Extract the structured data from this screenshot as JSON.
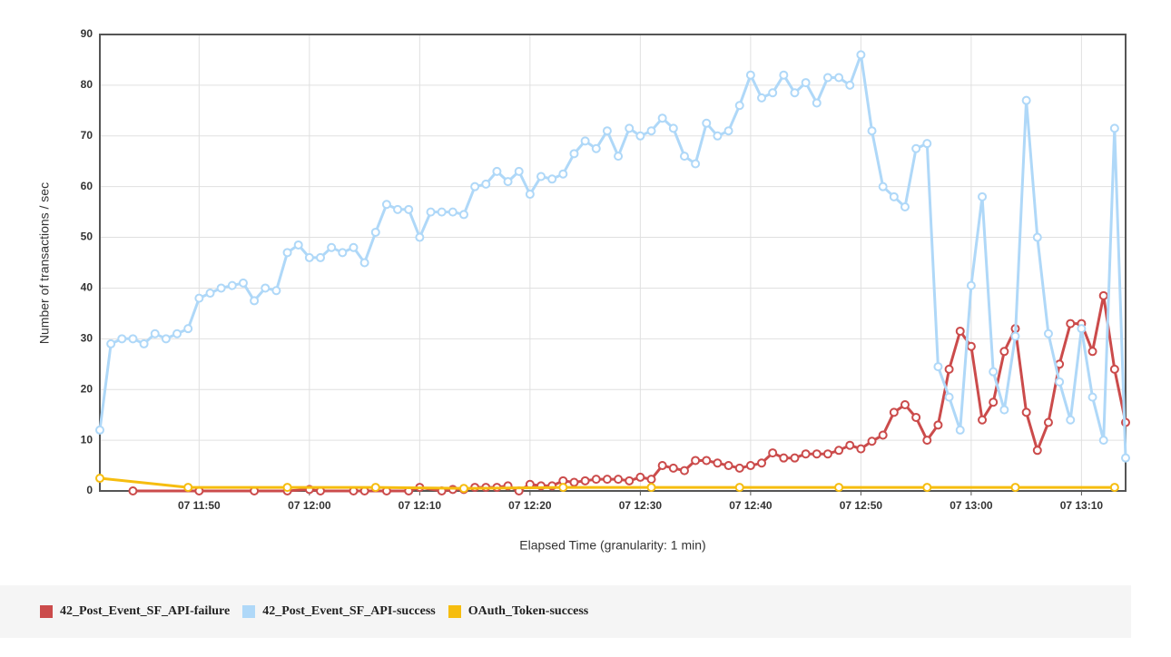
{
  "chart_data": {
    "type": "line",
    "x_label": "Elapsed Time (granularity: 1 min)",
    "y_label": "Number of transactions / sec",
    "xlim": [
      "07 11:41",
      "07 13:14"
    ],
    "xticks": [
      "07 11:50",
      "07 12:00",
      "07 12:10",
      "07 12:20",
      "07 12:30",
      "07 12:40",
      "07 12:50",
      "07 13:00",
      "07 13:10"
    ],
    "ylim": [
      0,
      90
    ],
    "yticks": [
      0,
      10,
      20,
      30,
      40,
      50,
      60,
      70,
      80,
      90
    ],
    "grid": true,
    "legend": "bottom",
    "series": [
      {
        "name": "42_Post_Event_SF_API-failure",
        "color": "#cb4b4b",
        "x": [
          "07 11:44",
          "07 11:50",
          "07 11:55",
          "07 11:58",
          "07 12:00",
          "07 12:01",
          "07 12:04",
          "07 12:05",
          "07 12:07",
          "07 12:09",
          "07 12:10",
          "07 12:12",
          "07 12:13",
          "07 12:14",
          "07 12:15",
          "07 12:16",
          "07 12:17",
          "07 12:18",
          "07 12:19",
          "07 12:20",
          "07 12:21",
          "07 12:22",
          "07 12:23",
          "07 12:24",
          "07 12:25",
          "07 12:26",
          "07 12:27",
          "07 12:28",
          "07 12:29",
          "07 12:30",
          "07 12:31",
          "07 12:32",
          "07 12:33",
          "07 12:34",
          "07 12:35",
          "07 12:36",
          "07 12:37",
          "07 12:38",
          "07 12:39",
          "07 12:40",
          "07 12:41",
          "07 12:42",
          "07 12:43",
          "07 12:44",
          "07 12:45",
          "07 12:46",
          "07 12:47",
          "07 12:48",
          "07 12:49",
          "07 12:50",
          "07 12:51",
          "07 12:52",
          "07 12:53",
          "07 12:54",
          "07 12:55",
          "07 12:56",
          "07 12:57",
          "07 12:58",
          "07 12:59",
          "07 13:00",
          "07 13:01",
          "07 13:02",
          "07 13:03",
          "07 13:04",
          "07 13:05",
          "07 13:06",
          "07 13:07",
          "07 13:08",
          "07 13:09",
          "07 13:10",
          "07 13:11",
          "07 13:12",
          "07 13:13",
          "07 13:14"
        ],
        "values": [
          0,
          0,
          0,
          0,
          0.3,
          0,
          0,
          0,
          0,
          0,
          0.7,
          0,
          0.3,
          0.3,
          0.7,
          0.7,
          0.7,
          1,
          0,
          1.3,
          1,
          1,
          2,
          1.7,
          2,
          2.3,
          2.3,
          2.3,
          2,
          2.7,
          2.3,
          5,
          4.5,
          4,
          6,
          6,
          5.5,
          5,
          4.5,
          5,
          5.5,
          7.5,
          6.5,
          6.5,
          7.3,
          7.3,
          7.3,
          8,
          9,
          8.3,
          9.8,
          11,
          15.5,
          17,
          14.5,
          10,
          13,
          24,
          31.5,
          28.5,
          14,
          17.5,
          27.5,
          32,
          15.5,
          8,
          13.5,
          25,
          33,
          33,
          27.5,
          38.5,
          24,
          13.5
        ]
      },
      {
        "name": "42_Post_Event_SF_API-success",
        "color": "#afd8f8",
        "x": [
          "07 11:41",
          "07 11:42",
          "07 11:43",
          "07 11:44",
          "07 11:45",
          "07 11:46",
          "07 11:47",
          "07 11:48",
          "07 11:49",
          "07 11:50",
          "07 11:51",
          "07 11:52",
          "07 11:53",
          "07 11:54",
          "07 11:55",
          "07 11:56",
          "07 11:57",
          "07 11:58",
          "07 11:59",
          "07 12:00",
          "07 12:01",
          "07 12:02",
          "07 12:03",
          "07 12:04",
          "07 12:05",
          "07 12:06",
          "07 12:07",
          "07 12:08",
          "07 12:09",
          "07 12:10",
          "07 12:11",
          "07 12:12",
          "07 12:13",
          "07 12:14",
          "07 12:15",
          "07 12:16",
          "07 12:17",
          "07 12:18",
          "07 12:19",
          "07 12:20",
          "07 12:21",
          "07 12:22",
          "07 12:23",
          "07 12:24",
          "07 12:25",
          "07 12:26",
          "07 12:27",
          "07 12:28",
          "07 12:29",
          "07 12:30",
          "07 12:31",
          "07 12:32",
          "07 12:33",
          "07 12:34",
          "07 12:35",
          "07 12:36",
          "07 12:37",
          "07 12:38",
          "07 12:39",
          "07 12:40",
          "07 12:41",
          "07 12:42",
          "07 12:43",
          "07 12:44",
          "07 12:45",
          "07 12:46",
          "07 12:47",
          "07 12:48",
          "07 12:49",
          "07 12:50",
          "07 12:51",
          "07 12:52",
          "07 12:53",
          "07 12:54",
          "07 12:55",
          "07 12:56",
          "07 12:57",
          "07 12:58",
          "07 12:59",
          "07 13:00",
          "07 13:01",
          "07 13:02",
          "07 13:03",
          "07 13:04",
          "07 13:05",
          "07 13:06",
          "07 13:07",
          "07 13:08",
          "07 13:09",
          "07 13:10",
          "07 13:11",
          "07 13:12",
          "07 13:13",
          "07 13:14"
        ],
        "values": [
          12,
          29,
          30,
          30,
          29,
          31,
          30,
          31,
          32,
          38,
          39,
          40,
          40.5,
          41,
          37.5,
          40,
          39.5,
          47,
          48.5,
          46,
          46,
          48,
          47,
          48,
          45,
          51,
          56.5,
          55.5,
          55.5,
          50,
          55,
          55,
          55,
          54.5,
          60,
          60.5,
          63,
          61,
          63,
          58.5,
          62,
          61.5,
          62.5,
          66.5,
          69,
          67.5,
          71,
          66,
          71.5,
          70,
          71,
          73.5,
          71.5,
          66,
          64.5,
          72.5,
          70,
          71,
          76,
          82,
          77.5,
          78.5,
          82,
          78.5,
          80.5,
          76.5,
          81.5,
          81.5,
          80,
          86,
          71,
          60,
          58,
          56,
          67.5,
          68.5,
          24.5,
          18.5,
          12,
          40.5,
          58,
          23.5,
          16,
          30.5,
          77,
          50,
          31,
          21.5,
          14,
          32,
          18.5,
          10,
          71.5,
          6.5
        ]
      },
      {
        "name": "OAuth_Token-success",
        "color": "#f6bd0f",
        "x": [
          "07 11:41",
          "07 11:49",
          "07 11:58",
          "07 12:06",
          "07 12:14",
          "07 12:23",
          "07 12:31",
          "07 12:39",
          "07 12:48",
          "07 12:56",
          "07 13:04",
          "07 13:13"
        ],
        "values": [
          2.5,
          0.7,
          0.7,
          0.7,
          0.5,
          0.7,
          0.7,
          0.7,
          0.7,
          0.7,
          0.7,
          0.7
        ]
      }
    ]
  }
}
